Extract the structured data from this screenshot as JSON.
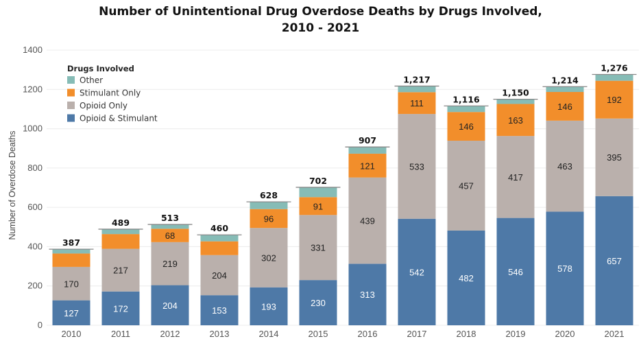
{
  "chart_data": {
    "type": "bar",
    "stacked": true,
    "title": "Number of Unintentional Drug Overdose Deaths by Drugs Involved,",
    "subtitle": "2010 - 2021",
    "xlabel": "",
    "ylabel": "Number of Overdose Deaths",
    "ylim": [
      0,
      1400
    ],
    "yticks": [
      0,
      200,
      400,
      600,
      800,
      1000,
      1200,
      1400
    ],
    "categories": [
      "2010",
      "2011",
      "2012",
      "2013",
      "2014",
      "2015",
      "2016",
      "2017",
      "2018",
      "2019",
      "2020",
      "2021"
    ],
    "series": [
      {
        "name": "Opioid & Stimulant",
        "color": "#4e79a7",
        "values": [
          127,
          172,
          204,
          153,
          193,
          230,
          313,
          542,
          482,
          546,
          578,
          657
        ],
        "show_labels": true
      },
      {
        "name": "Opioid Only",
        "color": "#bab0ac",
        "values": [
          170,
          217,
          219,
          204,
          302,
          331,
          439,
          533,
          457,
          417,
          463,
          395
        ],
        "show_labels": true
      },
      {
        "name": "Stimulant Only",
        "color": "#f28e2b",
        "values": [
          68,
          75,
          68,
          70,
          96,
          91,
          121,
          111,
          146,
          163,
          146,
          192
        ],
        "show_labels": [
          false,
          false,
          true,
          false,
          true,
          true,
          true,
          true,
          true,
          true,
          true,
          true
        ]
      },
      {
        "name": "Other",
        "color": "#86bcb6",
        "values": [
          22,
          25,
          22,
          33,
          37,
          50,
          34,
          31,
          31,
          24,
          27,
          32
        ],
        "show_labels": false
      }
    ],
    "totals": [
      "387",
      "489",
      "513",
      "460",
      "628",
      "702",
      "907",
      "1,217",
      "1,116",
      "1,150",
      "1,214",
      "1,276"
    ],
    "legend": {
      "title": "Drugs Involved",
      "placement": "top-left",
      "order": [
        "Other",
        "Stimulant Only",
        "Opioid Only",
        "Opioid & Stimulant"
      ]
    },
    "grid": true
  }
}
